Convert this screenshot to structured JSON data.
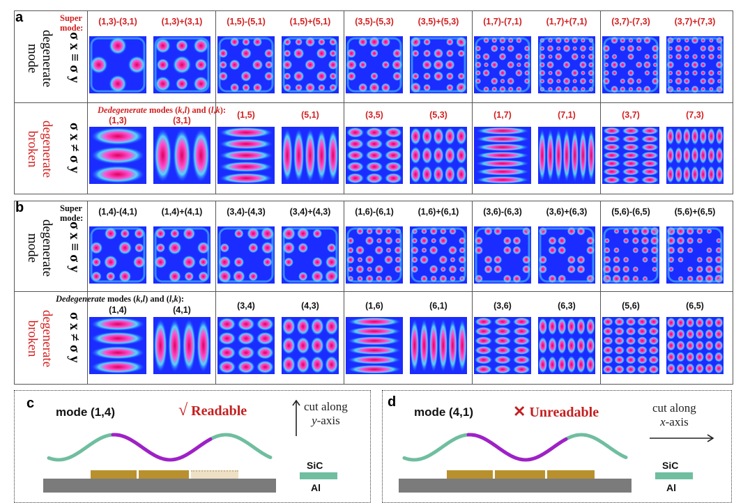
{
  "panels": {
    "a": {
      "letter": "a",
      "row1_label": [
        "degenerate",
        "mode"
      ],
      "row2_label": [
        "degenerate",
        "broken"
      ],
      "sigma_eq": "σ x ≡ σ y",
      "sigma_neq": "σ x ≠ σ y",
      "super_mode": [
        "Super",
        "mode:"
      ],
      "dedegenerate": {
        "lead": "Dedegenerate",
        "rest": " modes (",
        "k": "k",
        "comma": ",",
        "l": "l",
        "mid": ") and (",
        "l2": "l",
        "comma2": ",",
        "k2": "k",
        "end": "):"
      },
      "super_labels": [
        "(1,3)-(3,1)",
        "(1,3)+(3,1)",
        "(1,5)-(5,1)",
        "(1,5)+(5,1)",
        "(3,5)-(5,3)",
        "(3,5)+(5,3)",
        "(1,7)-(7,1)",
        "(1,7)+(7,1)",
        "(3,7)-(7,3)",
        "(3,7)+(7,3)"
      ],
      "broken_labels": [
        "(1,3)",
        "(3,1)",
        "(1,5)",
        "(5,1)",
        "(3,5)",
        "(5,3)",
        "(1,7)",
        "(7,1)",
        "(3,7)",
        "(7,3)"
      ],
      "label_color": "#d32020"
    },
    "b": {
      "letter": "b",
      "row1_label": [
        "degenerate",
        "mode"
      ],
      "row2_label": [
        "degenerate",
        "broken"
      ],
      "sigma_eq": "σ x ≡ σ y",
      "sigma_neq": "σ x ≠ σ y",
      "super_mode": [
        "Super",
        "mode:"
      ],
      "dedegenerate": {
        "lead": "Dedegenerate",
        "rest": " modes (",
        "k": "k",
        "comma": ",",
        "l": "l",
        "mid": ") and (",
        "l2": "l",
        "comma2": ",",
        "k2": "k",
        "end": "):"
      },
      "super_labels": [
        "(1,4)-(4,1)",
        "(1,4)+(4,1)",
        "(3,4)-(4,3)",
        "(3,4)+(4,3)",
        "(1,6)-(6,1)",
        "(1,6)+(6,1)",
        "(3,6)-(6,3)",
        "(3,6)+(6,3)",
        "(5,6)-(6,5)",
        "(5,6)+(6,5)"
      ],
      "broken_labels": [
        "(1,4)",
        "(4,1)",
        "(3,4)",
        "(4,3)",
        "(1,6)",
        "(6,1)",
        "(3,6)",
        "(6,3)",
        "(5,6)",
        "(6,5)"
      ],
      "label_color": "#111111"
    },
    "c": {
      "letter": "c",
      "mode": "mode (1,4)",
      "check": "√",
      "status": "Readable",
      "cut_line1": "cut along",
      "cut_axis": "y",
      "cut_suffix": "-axis",
      "legend_sic": "SiC",
      "legend_al": "Al"
    },
    "d": {
      "letter": "d",
      "mode": "mode (4,1)",
      "cross": "✕",
      "status": "Unreadable",
      "cut_line1": "cut along",
      "cut_axis": "x",
      "cut_suffix": "-axis",
      "legend_sic": "SiC",
      "legend_al": "Al"
    }
  },
  "colors": {
    "field_low": "#1a2cff",
    "field_mid": "#4fd7ff",
    "field_high": "#e0005a",
    "wave": "#6fbea0",
    "wave_highlight": "#a020c8",
    "electrode": "#b8912e",
    "electrode_faded": "#e8d6b4",
    "substrate": "#7b7b7b",
    "sic": "#6fbea0"
  }
}
